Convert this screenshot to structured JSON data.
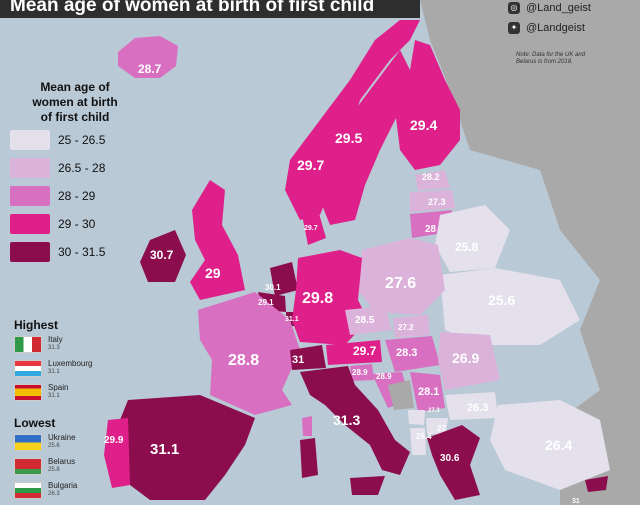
{
  "title": "Mean age of women at birth of first child",
  "social": {
    "instagram": "@Land_geist",
    "twitter": "@Landgeist"
  },
  "note": "Note: Data for the UK and Belarus is from 2018.",
  "legend": {
    "title": "Mean age of women at birth of first child",
    "title_lines": [
      "Mean age of",
      "women at birth",
      "of first child"
    ],
    "items": [
      {
        "label": "25  - 26.5",
        "color": "#e4e0ec"
      },
      {
        "label": "26.5 -  28",
        "color": "#dbb2da"
      },
      {
        "label": "28  -  29",
        "color": "#d86fc0"
      },
      {
        "label": "29  -  30",
        "color": "#e0208a"
      },
      {
        "label": "30  - 31.5",
        "color": "#8c0d4d"
      }
    ]
  },
  "highest": {
    "heading": "Highest",
    "items": [
      {
        "country": "Italy",
        "value": "31.3"
      },
      {
        "country": "Luxembourg",
        "value": "31.1"
      },
      {
        "country": "Spain",
        "value": "31.1"
      }
    ]
  },
  "lowest": {
    "heading": "Lowest",
    "items": [
      {
        "country": "Ukraine",
        "value": "25.6"
      },
      {
        "country": "Belarus",
        "value": "25.8"
      },
      {
        "country": "Bulgaria",
        "value": "26.3"
      }
    ]
  },
  "map_labels": [
    {
      "value": "28.7"
    },
    {
      "value": "29.5"
    },
    {
      "value": "29.4"
    },
    {
      "value": "29.7"
    },
    {
      "value": "28.2"
    },
    {
      "value": "27.3"
    },
    {
      "value": "28"
    },
    {
      "value": "29.7"
    },
    {
      "value": "30.7"
    },
    {
      "value": "29"
    },
    {
      "value": "30.1"
    },
    {
      "value": "29.1"
    },
    {
      "value": "31.1"
    },
    {
      "value": "29.8"
    },
    {
      "value": "25.8"
    },
    {
      "value": "27.6"
    },
    {
      "value": "25.6"
    },
    {
      "value": "28.5"
    },
    {
      "value": "27.2"
    },
    {
      "value": "28.8"
    },
    {
      "value": "31"
    },
    {
      "value": "29.7"
    },
    {
      "value": "28.3"
    },
    {
      "value": "26.9"
    },
    {
      "value": "28.9"
    },
    {
      "value": "28.9"
    },
    {
      "value": "28.1"
    },
    {
      "value": "31.3"
    },
    {
      "value": "27.3"
    },
    {
      "value": "26.3"
    },
    {
      "value": "27"
    },
    {
      "value": "26.4"
    },
    {
      "value": "29.9"
    },
    {
      "value": "31.1"
    },
    {
      "value": "30.6"
    },
    {
      "value": "26.4"
    },
    {
      "value": "31"
    }
  ]
}
